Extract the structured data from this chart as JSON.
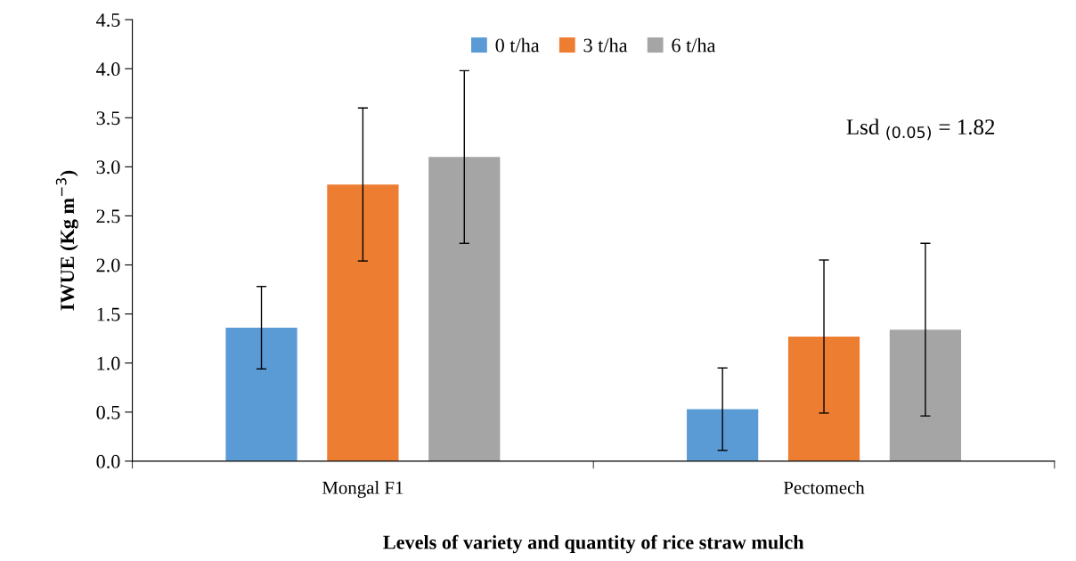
{
  "chart_data": {
    "type": "bar",
    "xlabel": "Levels of variety and quantity of rice straw mulch",
    "ylabel": "IWUE (Kg m$^{−3}$)",
    "categories": [
      "Mongal F1",
      "Pectomech"
    ],
    "series": [
      {
        "name": "0 t/ha",
        "color": "#5b9bd5",
        "values": [
          1.36,
          0.53
        ],
        "errors": [
          0.42,
          0.42
        ]
      },
      {
        "name": "3 t/ha",
        "color": "#ed7d31",
        "values": [
          2.82,
          1.27
        ],
        "errors": [
          0.78,
          0.78
        ]
      },
      {
        "name": "6 t/ha",
        "color": "#a5a5a5",
        "values": [
          3.1,
          1.34
        ],
        "errors": [
          0.88,
          0.88
        ]
      }
    ],
    "ylim": [
      0,
      4.5
    ],
    "yticks": [
      {
        "value": 0,
        "label": "0.0"
      },
      {
        "value": 0.5,
        "label": "0.5"
      },
      {
        "value": 1,
        "label": "1.0"
      },
      {
        "value": 1.5,
        "label": "1.5"
      },
      {
        "value": 2,
        "label": "2.0"
      },
      {
        "value": 2.5,
        "label": "2.5"
      },
      {
        "value": 3,
        "label": "3.0"
      },
      {
        "value": 3.5,
        "label": "3.5"
      },
      {
        "value": 4,
        "label": "4.0"
      },
      {
        "value": 4.5,
        "label": "4.5"
      }
    ],
    "annotations": [
      "Lsd $_{(0.05)}$ = 1.82"
    ],
    "legend": "top",
    "grid": false
  }
}
